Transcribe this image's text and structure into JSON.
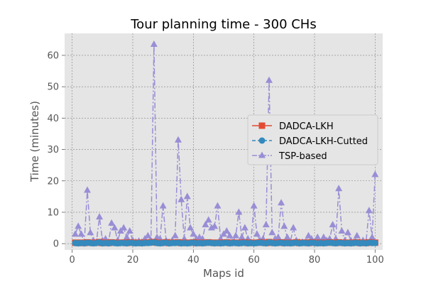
{
  "chart_data": {
    "type": "line",
    "title": "Tour planning time - 300 CHs",
    "xlabel": "Maps id",
    "ylabel": "Time (minutes)",
    "xlim": [
      -2.5,
      102.5
    ],
    "ylim": [
      -2,
      67
    ],
    "xticks": [
      0,
      20,
      40,
      60,
      80,
      100
    ],
    "yticks": [
      0,
      10,
      20,
      30,
      40,
      50,
      60
    ],
    "grid": true,
    "legend_position": "center-right",
    "x": [
      1,
      2,
      3,
      4,
      5,
      6,
      7,
      8,
      9,
      10,
      11,
      12,
      13,
      14,
      15,
      16,
      17,
      18,
      19,
      20,
      21,
      22,
      23,
      24,
      25,
      26,
      27,
      28,
      29,
      30,
      31,
      32,
      33,
      34,
      35,
      36,
      37,
      38,
      39,
      40,
      41,
      42,
      43,
      44,
      45,
      46,
      47,
      48,
      49,
      50,
      51,
      52,
      53,
      54,
      55,
      56,
      57,
      58,
      59,
      60,
      61,
      62,
      63,
      64,
      65,
      66,
      67,
      68,
      69,
      70,
      71,
      72,
      73,
      74,
      75,
      76,
      77,
      78,
      79,
      80,
      81,
      82,
      83,
      84,
      85,
      86,
      87,
      88,
      89,
      90,
      91,
      92,
      93,
      94,
      95,
      96,
      97,
      98,
      99,
      100
    ],
    "series": [
      {
        "name": "DADCA-LKH",
        "color": "#E24A33",
        "marker": "square",
        "linestyle": "solid",
        "values": [
          0.3,
          0.2,
          0.3,
          0.2,
          0.4,
          0.3,
          0.2,
          0.3,
          0.5,
          0.2,
          0.3,
          0.2,
          0.4,
          0.3,
          0.2,
          0.3,
          0.3,
          0.2,
          0.4,
          0.3,
          0.2,
          0.3,
          0.2,
          0.3,
          0.3,
          0.4,
          0.5,
          0.3,
          0.2,
          0.3,
          0.4,
          0.2,
          0.3,
          0.3,
          0.4,
          0.2,
          0.3,
          0.2,
          0.3,
          0.4,
          0.2,
          0.3,
          0.2,
          0.3,
          0.4,
          0.3,
          0.2,
          0.3,
          0.2,
          0.3,
          0.4,
          0.2,
          0.3,
          0.3,
          0.2,
          0.3,
          0.4,
          0.2,
          0.3,
          0.2,
          0.3,
          0.4,
          0.3,
          0.2,
          0.5,
          0.3,
          0.2,
          0.3,
          0.4,
          0.2,
          0.3,
          0.2,
          0.3,
          0.4,
          0.2,
          0.3,
          0.3,
          0.2,
          0.4,
          0.3,
          0.2,
          0.3,
          0.2,
          0.3,
          0.4,
          0.3,
          0.2,
          0.4,
          0.3,
          0.2,
          0.3,
          0.2,
          0.3,
          0.4,
          0.2,
          0.3,
          0.2,
          0.4,
          0.3,
          0.3
        ]
      },
      {
        "name": "DADCA-LKH-Cutted",
        "color": "#348ABD",
        "marker": "circle",
        "linestyle": "dashed",
        "values": [
          0.2,
          0.1,
          0.2,
          0.1,
          0.3,
          0.2,
          0.1,
          0.2,
          0.4,
          0.1,
          0.2,
          0.1,
          0.3,
          0.2,
          0.1,
          0.2,
          0.2,
          0.1,
          0.3,
          0.2,
          0.1,
          0.2,
          0.1,
          0.2,
          0.2,
          0.3,
          0.4,
          0.2,
          0.1,
          0.2,
          0.3,
          0.1,
          0.2,
          0.2,
          0.3,
          0.1,
          0.2,
          0.1,
          0.2,
          0.3,
          0.1,
          0.2,
          0.1,
          0.2,
          0.3,
          0.2,
          0.1,
          0.2,
          0.1,
          0.2,
          0.3,
          0.1,
          0.2,
          0.2,
          0.1,
          0.2,
          0.3,
          0.1,
          0.2,
          0.1,
          0.2,
          0.3,
          0.2,
          0.1,
          0.4,
          0.2,
          0.1,
          0.2,
          0.3,
          0.1,
          0.2,
          0.1,
          0.2,
          0.3,
          0.1,
          0.2,
          0.2,
          0.1,
          0.3,
          0.2,
          0.1,
          0.2,
          0.1,
          0.2,
          0.3,
          0.2,
          0.1,
          0.3,
          0.2,
          0.1,
          0.2,
          0.1,
          0.2,
          0.3,
          0.1,
          0.2,
          0.1,
          0.3,
          0.2,
          0.2
        ]
      },
      {
        "name": "TSP-based",
        "color": "#988ED5",
        "marker": "triangle",
        "linestyle": "dashdot",
        "values": [
          3,
          5.5,
          3,
          0.5,
          17,
          3.5,
          1,
          0.5,
          8.5,
          1,
          1.5,
          0.5,
          6.5,
          5,
          1,
          4,
          5,
          2,
          4,
          1,
          0.5,
          0.8,
          0.5,
          1.5,
          2.5,
          1,
          63.5,
          2,
          1.5,
          12,
          1,
          0.5,
          1,
          2.5,
          33,
          14,
          1.5,
          15,
          5,
          3,
          1.5,
          2,
          1.5,
          6,
          7.5,
          5,
          5.5,
          12,
          1.5,
          3,
          4,
          2.5,
          0.5,
          2.5,
          10,
          2,
          5,
          1.5,
          0.5,
          12,
          3,
          1,
          1.5,
          6,
          52,
          3.5,
          1.5,
          2,
          13,
          5.5,
          2,
          0.5,
          5,
          1,
          0.5,
          0.5,
          0.5,
          2.5,
          1.5,
          0.5,
          2,
          0.5,
          2,
          1,
          1.5,
          6,
          1.5,
          17.5,
          4,
          1,
          3.5,
          1,
          0.5,
          2.5,
          0.5,
          1,
          0.5,
          10.5,
          2,
          22
        ]
      }
    ]
  }
}
